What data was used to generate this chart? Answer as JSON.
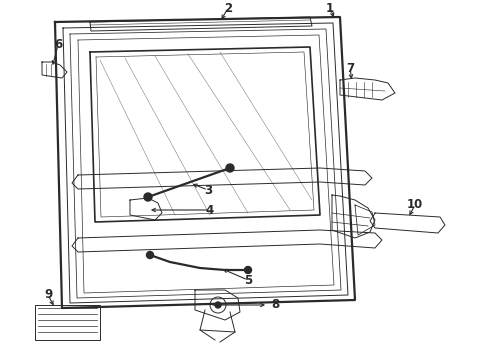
{
  "bg_color": "#ffffff",
  "lc": "#2a2a2a",
  "lw_main": 1.2,
  "lw_thin": 0.7,
  "lw_thick": 1.6,
  "figsize": [
    4.9,
    3.6
  ],
  "dpi": 100,
  "xlim": [
    0,
    490
  ],
  "ylim": [
    0,
    360
  ]
}
